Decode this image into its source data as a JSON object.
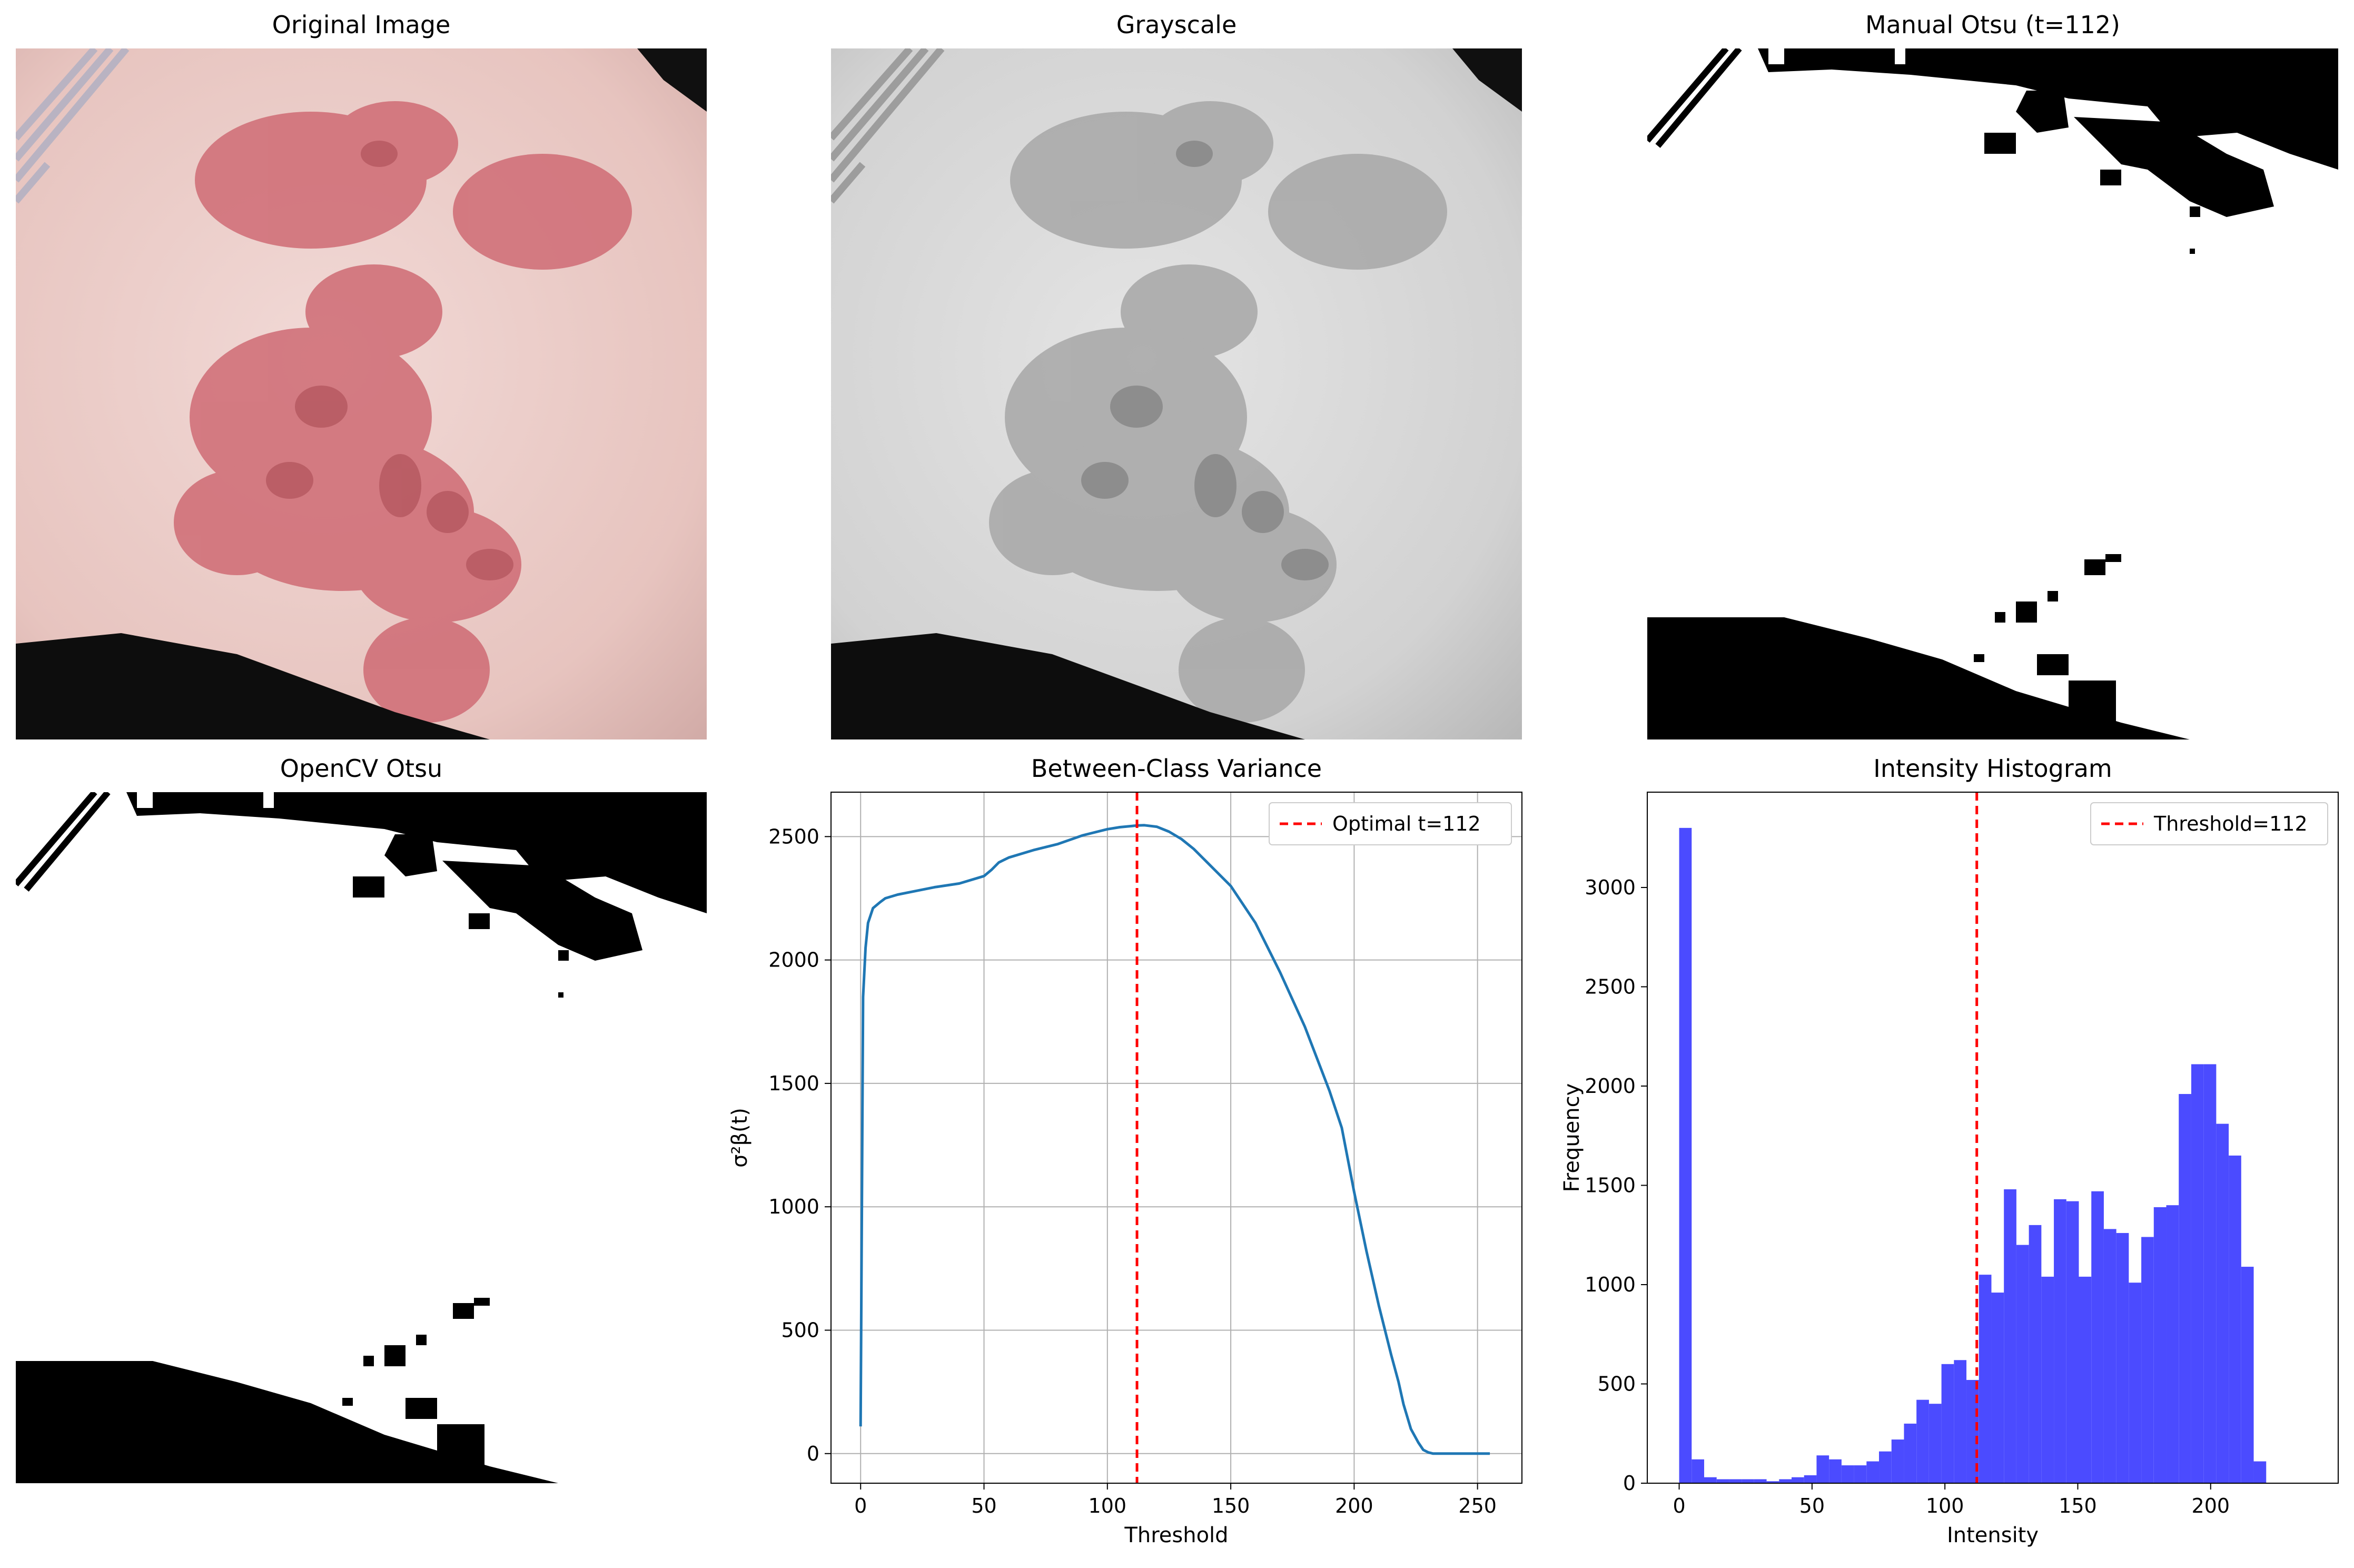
{
  "panels": {
    "original": {
      "title": "Original Image"
    },
    "grayscale": {
      "title": "Grayscale"
    },
    "manual_otsu": {
      "title": "Manual Otsu (t=112)"
    },
    "opencv_otsu": {
      "title": "OpenCV Otsu"
    },
    "variance": {
      "title": "Between-Class Variance"
    },
    "histogram": {
      "title": "Intensity Histogram"
    }
  },
  "chart_data": [
    {
      "type": "line",
      "title": "Between-Class Variance",
      "xlabel": "Threshold",
      "ylabel": "σ²β(t)",
      "xlim": [
        -12,
        268
      ],
      "ylim": [
        -120,
        2680
      ],
      "xticks": [
        0,
        50,
        100,
        150,
        200,
        250
      ],
      "yticks": [
        0,
        500,
        1000,
        1500,
        2000,
        2500
      ],
      "grid": true,
      "legend_position": "top-right",
      "series": [
        {
          "name": "",
          "color": "#1f77b4",
          "x": [
            0,
            1,
            2,
            3,
            5,
            8,
            10,
            15,
            20,
            30,
            40,
            50,
            53,
            56,
            60,
            70,
            80,
            90,
            100,
            105,
            110,
            112,
            115,
            120,
            125,
            130,
            135,
            140,
            150,
            160,
            170,
            180,
            190,
            195,
            200,
            205,
            210,
            215,
            218,
            220,
            223,
            226,
            228,
            230,
            232,
            235,
            240,
            245,
            250,
            255
          ],
          "values": [
            110,
            1850,
            2050,
            2150,
            2210,
            2235,
            2250,
            2265,
            2275,
            2295,
            2310,
            2340,
            2365,
            2395,
            2415,
            2445,
            2470,
            2505,
            2530,
            2538,
            2543,
            2545,
            2546,
            2540,
            2520,
            2490,
            2450,
            2400,
            2300,
            2150,
            1950,
            1730,
            1470,
            1320,
            1060,
            820,
            600,
            400,
            290,
            200,
            100,
            45,
            15,
            5,
            0,
            0,
            0,
            0,
            0,
            0
          ]
        }
      ],
      "threshold_line": {
        "x": 112,
        "label": "Optimal t=112",
        "color": "#ff0000"
      }
    },
    {
      "type": "bar",
      "title": "Intensity Histogram",
      "xlabel": "Intensity",
      "ylabel": "Frequency",
      "xlim": [
        -12,
        248
      ],
      "ylim": [
        0,
        3480
      ],
      "xticks": [
        0,
        50,
        100,
        150,
        200
      ],
      "yticks": [
        0,
        500,
        1000,
        1500,
        2000,
        2500,
        3000
      ],
      "bin_start": 0,
      "bin_width": 4.7,
      "color": "#4b4bff",
      "values": [
        3300,
        120,
        30,
        20,
        20,
        20,
        20,
        10,
        20,
        30,
        40,
        140,
        120,
        90,
        90,
        110,
        160,
        220,
        300,
        420,
        400,
        600,
        620,
        520,
        1050,
        960,
        1480,
        1200,
        1300,
        1040,
        1430,
        1420,
        1040,
        1470,
        1280,
        1260,
        1010,
        1240,
        1390,
        1400,
        1960,
        2110,
        2110,
        1810,
        1650,
        1090,
        110
      ],
      "threshold_line": {
        "x": 112,
        "label": "Threshold=112",
        "color": "#ff0000"
      }
    }
  ]
}
